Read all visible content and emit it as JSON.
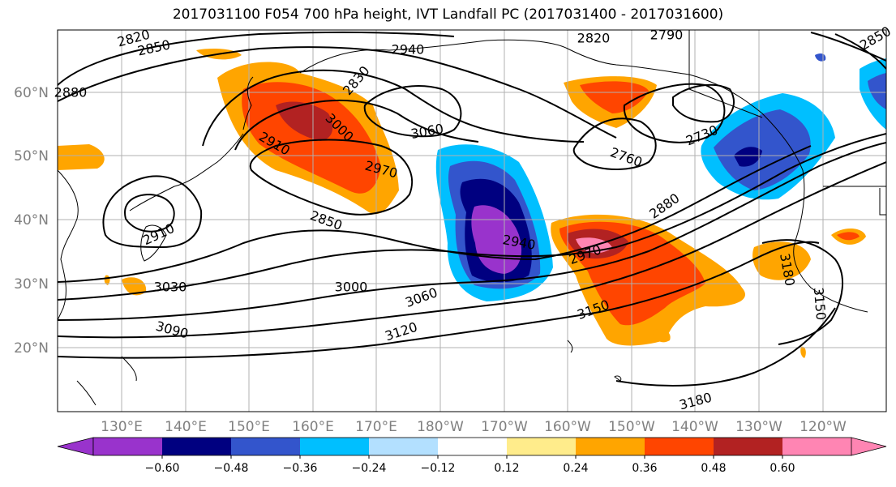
{
  "title": "2017031100 F054 700 hPa height, IVT Landfall PC (2017031400 - 2017031600)",
  "axes": {
    "lat_labels": [
      "60°N",
      "50°N",
      "40°N",
      "30°N",
      "20°N"
    ],
    "lon_labels": [
      "130°E",
      "140°E",
      "150°E",
      "160°E",
      "170°E",
      "180°W",
      "170°W",
      "160°W",
      "150°W",
      "140°W",
      "130°W",
      "120°W"
    ]
  },
  "contour_labels": [
    "2820",
    "2850",
    "2940",
    "2820",
    "2790",
    "2880",
    "2830",
    "3000",
    "3060",
    "2910",
    "2970",
    "2760",
    "2730",
    "2880",
    "2850",
    "2910",
    "2940",
    "2970",
    "3030",
    "3000",
    "3060",
    "3150",
    "3180",
    "3150",
    "3090",
    "3120",
    "3180",
    "2850"
  ],
  "colorbar": {
    "colors": [
      "#9933cc",
      "#000080",
      "#3355cc",
      "#00bfff",
      "#b3e0ff",
      "#ffffff",
      "#ffec8b",
      "#ffa500",
      "#ff4500",
      "#b22222",
      "#ff85b3"
    ],
    "tick_labels": [
      "−0.60",
      "−0.48",
      "−0.36",
      "−0.24",
      "−0.12",
      "0.12",
      "0.24",
      "0.36",
      "0.48",
      "0.60"
    ]
  }
}
